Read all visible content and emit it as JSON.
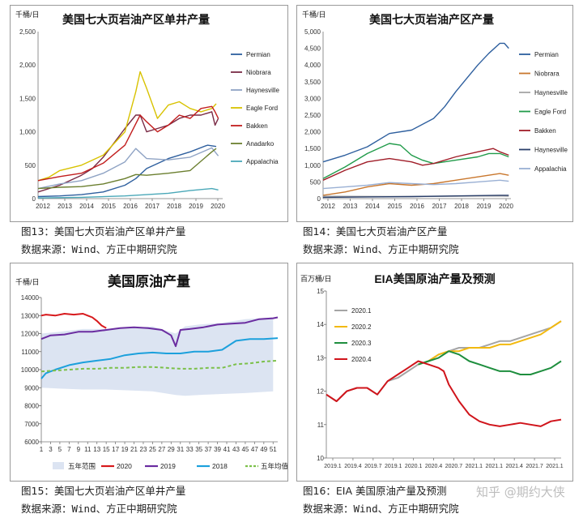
{
  "figures": [
    {
      "caption": "图13：美国七大页岩油产区单井产量",
      "source": "数据来源：Wind、方正中期研究院"
    },
    {
      "caption": "图14：美国七大页岩油产区产量",
      "source": "数据来源：Wind、方正中期研究院"
    },
    {
      "caption": "图15：美国七大页岩油产区单井产量",
      "source": "数据来源：Wind、方正中期研究院"
    },
    {
      "caption": "图16：EIA 美国原油产量及预测",
      "source": "数据来源：Wind、方正中期研究院"
    }
  ],
  "watermark": "知乎 @期约大侠",
  "chart_data": [
    {
      "type": "line",
      "title": "美国七大页岩油产区单井产量",
      "unit": "千桶/日",
      "ylim": [
        0,
        2500
      ],
      "yticks": [
        "0",
        "500",
        "1,000",
        "1,500",
        "2,000",
        "2,500"
      ],
      "xlim": [
        2012,
        2020.5
      ],
      "xticks": [
        "2012",
        "2013",
        "2014",
        "2015",
        "2016",
        "2017",
        "2018",
        "2019",
        "2020"
      ],
      "legend_position": "right",
      "series": [
        {
          "name": "Permian",
          "color": "#2e5f9e",
          "x": [
            2012,
            2013,
            2014,
            2015,
            2016,
            2016.5,
            2017,
            2018,
            2019,
            2019.8,
            2020.2
          ],
          "y": [
            30,
            40,
            60,
            100,
            200,
            300,
            450,
            600,
            700,
            800,
            780
          ]
        },
        {
          "name": "Niobrara",
          "color": "#7a2b46",
          "x": [
            2012,
            2013,
            2014,
            2014.5,
            2015,
            2016,
            2016.5,
            2016.7,
            2017,
            2017.5,
            2018,
            2018.5,
            2019,
            2019.5,
            2020,
            2020.15,
            2020.3
          ],
          "y": [
            100,
            200,
            350,
            450,
            620,
            1050,
            1250,
            1250,
            1000,
            1050,
            1100,
            1200,
            1250,
            1250,
            1300,
            1100,
            1200
          ]
        },
        {
          "name": "Haynesville",
          "color": "#8fa3c4",
          "x": [
            2012,
            2013,
            2014,
            2015,
            2016,
            2016.5,
            2017,
            2018,
            2019,
            2020,
            2020.3
          ],
          "y": [
            150,
            220,
            270,
            380,
            550,
            750,
            600,
            580,
            620,
            760,
            640
          ]
        },
        {
          "name": "Eagle Ford",
          "color": "#d8c200",
          "x": [
            2012,
            2012.5,
            2013,
            2014,
            2015,
            2016,
            2016.5,
            2016.7,
            2017,
            2017.5,
            2018,
            2018.5,
            2019,
            2019.5,
            2020,
            2020.2
          ],
          "y": [
            270,
            320,
            420,
            500,
            650,
            1000,
            1600,
            1900,
            1650,
            1200,
            1400,
            1450,
            1350,
            1300,
            1350,
            1420
          ]
        },
        {
          "name": "Bakken",
          "color": "#c21e1e",
          "x": [
            2012,
            2013,
            2014,
            2015,
            2016,
            2016.7,
            2017,
            2017.5,
            2018,
            2018.5,
            2019,
            2019.5,
            2020,
            2020.15,
            2020.3
          ],
          "y": [
            270,
            330,
            380,
            530,
            800,
            1250,
            1150,
            1000,
            1100,
            1250,
            1200,
            1350,
            1380,
            1300,
            1200
          ]
        },
        {
          "name": "Anadarko",
          "color": "#6b7f2f",
          "x": [
            2012,
            2013,
            2014,
            2015,
            2016,
            2016.5,
            2017,
            2018,
            2019,
            2020,
            2020.2
          ],
          "y": [
            150,
            170,
            180,
            220,
            300,
            360,
            350,
            380,
            420,
            700,
            750
          ]
        },
        {
          "name": "Appalachia",
          "color": "#4aa8b8",
          "x": [
            2012,
            2014,
            2016,
            2018,
            2019,
            2020,
            2020.3
          ],
          "y": [
            10,
            20,
            40,
            80,
            120,
            150,
            130
          ]
        }
      ]
    },
    {
      "type": "line",
      "title": "美国七大页岩油产区产量",
      "unit": "千桶/日",
      "ylim": [
        0,
        5000
      ],
      "yticks": [
        "0",
        "500",
        "1,000",
        "1,500",
        "2,000",
        "2,500",
        "3,000",
        "3,500",
        "4,000",
        "4,500",
        "5,000"
      ],
      "xlim": [
        2012,
        2020.5
      ],
      "xticks": [
        "2012",
        "2013",
        "2014",
        "2015",
        "2016",
        "2017",
        "2018",
        "2019",
        "2020"
      ],
      "legend_position": "right",
      "series": [
        {
          "name": "Permian",
          "color": "#2e5f9e",
          "x": [
            2012,
            2013,
            2014,
            2015,
            2016,
            2017,
            2017.5,
            2018,
            2018.5,
            2019,
            2019.5,
            2020,
            2020.2,
            2020.4
          ],
          "y": [
            1100,
            1300,
            1550,
            1950,
            2050,
            2400,
            2750,
            3200,
            3600,
            4000,
            4350,
            4650,
            4650,
            4500
          ]
        },
        {
          "name": "Niobrara",
          "color": "#c9772d",
          "x": [
            2012,
            2013,
            2014,
            2015,
            2016,
            2017,
            2018,
            2019,
            2020,
            2020.4
          ],
          "y": [
            100,
            200,
            350,
            450,
            400,
            450,
            550,
            650,
            750,
            700
          ]
        },
        {
          "name": "Haynesville",
          "color": "#a5a5a5",
          "x": [
            2012,
            2014,
            2016,
            2018,
            2020,
            2020.4
          ],
          "y": [
            70,
            65,
            60,
            70,
            80,
            70
          ]
        },
        {
          "name": "Eagle Ford",
          "color": "#219b4a",
          "x": [
            2012,
            2013,
            2014,
            2015,
            2015.5,
            2016,
            2016.5,
            2017,
            2018,
            2019,
            2019.5,
            2020,
            2020.4
          ],
          "y": [
            600,
            950,
            1350,
            1650,
            1600,
            1300,
            1150,
            1050,
            1150,
            1250,
            1350,
            1350,
            1250
          ]
        },
        {
          "name": "Bakken",
          "color": "#a01d28",
          "x": [
            2012,
            2013,
            2014,
            2015,
            2016,
            2016.5,
            2017,
            2018,
            2019,
            2019.7,
            2020,
            2020.4
          ],
          "y": [
            550,
            850,
            1100,
            1200,
            1100,
            1000,
            1050,
            1250,
            1400,
            1500,
            1400,
            1300
          ]
        },
        {
          "name": "Haynesville",
          "color": "#2a3f6a",
          "x": [
            2012,
            2014,
            2016,
            2018,
            2020,
            2020.4
          ],
          "y": [
            40,
            50,
            60,
            80,
            100,
            100
          ]
        },
        {
          "name": "Appalachia",
          "color": "#9ab0d4",
          "x": [
            2012,
            2013,
            2014,
            2015,
            2016,
            2017,
            2018,
            2019,
            2020,
            2020.4
          ],
          "y": [
            300,
            350,
            400,
            480,
            450,
            420,
            450,
            500,
            550,
            520
          ]
        }
      ]
    },
    {
      "type": "line",
      "title": "美国原油产量",
      "unit": "千桶/日",
      "ylim": [
        6000,
        14000
      ],
      "yticks": [
        "6000",
        "7000",
        "8000",
        "9000",
        "10000",
        "11000",
        "12000",
        "13000",
        "14000"
      ],
      "xlim": [
        1,
        52
      ],
      "xticks": [
        "1",
        "3",
        "5",
        "7",
        "9",
        "11",
        "13",
        "15",
        "17",
        "19",
        "21",
        "23",
        "25",
        "27",
        "29",
        "31",
        "33",
        "35",
        "37",
        "39",
        "41",
        "43",
        "45",
        "47",
        "49",
        "51"
      ],
      "legend_position": "bottom",
      "band": {
        "name": "五年范围",
        "color": "#dce4f2",
        "x": [
          1,
          5,
          10,
          15,
          20,
          25,
          30,
          32,
          35,
          40,
          45,
          51
        ],
        "lower": [
          9000,
          8950,
          8900,
          8900,
          8850,
          8800,
          8600,
          8550,
          8600,
          8650,
          8700,
          8800
        ],
        "upper": [
          12000,
          12100,
          12250,
          12250,
          12300,
          12400,
          12000,
          12400,
          12500,
          12600,
          12800,
          12900
        ]
      },
      "series": [
        {
          "name": "2020",
          "color": "#d7191c",
          "x": [
            1,
            2,
            4,
            6,
            8,
            10,
            11,
            12,
            13,
            14,
            15
          ],
          "y": [
            13000,
            13050,
            13000,
            13100,
            13050,
            13100,
            13000,
            12900,
            12700,
            12450,
            12300
          ]
        },
        {
          "name": "2019",
          "color": "#6a2ca0",
          "x": [
            1,
            3,
            6,
            9,
            12,
            15,
            18,
            21,
            24,
            27,
            29,
            30,
            31,
            33,
            36,
            39,
            42,
            45,
            48,
            51,
            52
          ],
          "y": [
            11700,
            11900,
            11950,
            12100,
            12100,
            12200,
            12300,
            12350,
            12300,
            12200,
            11900,
            11300,
            12200,
            12250,
            12350,
            12500,
            12550,
            12600,
            12800,
            12850,
            12900
          ]
        },
        {
          "name": "2018",
          "color": "#1ca0dc",
          "x": [
            1,
            2,
            4,
            7,
            10,
            13,
            16,
            19,
            22,
            25,
            28,
            31,
            34,
            37,
            40,
            43,
            46,
            49,
            52
          ],
          "y": [
            9500,
            9800,
            10000,
            10250,
            10400,
            10500,
            10600,
            10800,
            10900,
            10950,
            10900,
            10900,
            11000,
            11000,
            11100,
            11600,
            11700,
            11700,
            11750
          ]
        },
        {
          "name": "五年均值",
          "color": "#7cc04a",
          "x": [
            1,
            4,
            7,
            10,
            13,
            16,
            19,
            22,
            25,
            28,
            31,
            34,
            37,
            40,
            43,
            46,
            49,
            52
          ],
          "y": [
            9900,
            9950,
            10000,
            10050,
            10050,
            10100,
            10100,
            10150,
            10150,
            10100,
            10050,
            10050,
            10100,
            10100,
            10300,
            10350,
            10450,
            10500
          ]
        }
      ]
    },
    {
      "type": "line",
      "title": "EIA美国原油产量及预测",
      "unit": "百万桶/日",
      "ylim": [
        10,
        15
      ],
      "yticks": [
        "10",
        "11",
        "12",
        "13",
        "14",
        "15"
      ],
      "xlim": [
        2019.0,
        2021.3
      ],
      "xticks": [
        "2019.1",
        "2019.4",
        "2019.7",
        "2019.1",
        "2020.1",
        "2020.4",
        "2020.7",
        "2021.1",
        "2021.1",
        "2021.4",
        "2021.7",
        "2021.1"
      ],
      "legend_position": "top-left",
      "series": [
        {
          "name": "2020.1",
          "color": "#a5a5a5",
          "x": [
            2019.0,
            2019.1,
            2019.2,
            2019.3,
            2019.4,
            2019.5,
            2019.6,
            2019.7,
            2019.8,
            2019.9,
            2020.0,
            2020.1,
            2020.2,
            2020.3,
            2020.4,
            2020.5,
            2020.6,
            2020.7,
            2020.8,
            2020.9,
            2021.0,
            2021.1,
            2021.2,
            2021.3
          ],
          "y": [
            11.9,
            11.7,
            12.0,
            12.1,
            12.1,
            11.9,
            12.3,
            12.4,
            12.6,
            12.8,
            12.9,
            13.1,
            13.2,
            13.3,
            13.3,
            13.3,
            13.4,
            13.5,
            13.5,
            13.6,
            13.7,
            13.8,
            13.9,
            14.1
          ]
        },
        {
          "name": "2020.2",
          "color": "#f2b90f",
          "x": [
            2019.9,
            2020.0,
            2020.1,
            2020.2,
            2020.3,
            2020.4,
            2020.5,
            2020.6,
            2020.7,
            2020.8,
            2020.9,
            2021.0,
            2021.1,
            2021.2,
            2021.3
          ],
          "y": [
            12.8,
            12.9,
            13.1,
            13.2,
            13.2,
            13.3,
            13.3,
            13.3,
            13.4,
            13.4,
            13.5,
            13.6,
            13.7,
            13.9,
            14.1
          ]
        },
        {
          "name": "2020.3",
          "color": "#1e8e3e",
          "x": [
            2019.9,
            2020.0,
            2020.1,
            2020.2,
            2020.3,
            2020.4,
            2020.5,
            2020.6,
            2020.7,
            2020.8,
            2020.9,
            2021.0,
            2021.1,
            2021.2,
            2021.3
          ],
          "y": [
            12.8,
            12.9,
            13.0,
            13.2,
            13.1,
            12.9,
            12.8,
            12.7,
            12.6,
            12.6,
            12.5,
            12.5,
            12.6,
            12.7,
            12.9
          ]
        },
        {
          "name": "2020.4",
          "color": "#d0141b",
          "x": [
            2019.0,
            2019.1,
            2019.2,
            2019.3,
            2019.4,
            2019.5,
            2019.6,
            2019.7,
            2019.8,
            2019.9,
            2020.0,
            2020.1,
            2020.15,
            2020.2,
            2020.3,
            2020.4,
            2020.5,
            2020.6,
            2020.7,
            2020.8,
            2020.9,
            2021.0,
            2021.1,
            2021.2,
            2021.3
          ],
          "y": [
            11.9,
            11.7,
            12.0,
            12.1,
            12.1,
            11.9,
            12.3,
            12.5,
            12.7,
            12.9,
            12.8,
            12.7,
            12.6,
            12.2,
            11.7,
            11.3,
            11.1,
            11.0,
            10.95,
            11.0,
            11.05,
            11.0,
            10.95,
            11.1,
            11.15
          ]
        }
      ]
    }
  ]
}
